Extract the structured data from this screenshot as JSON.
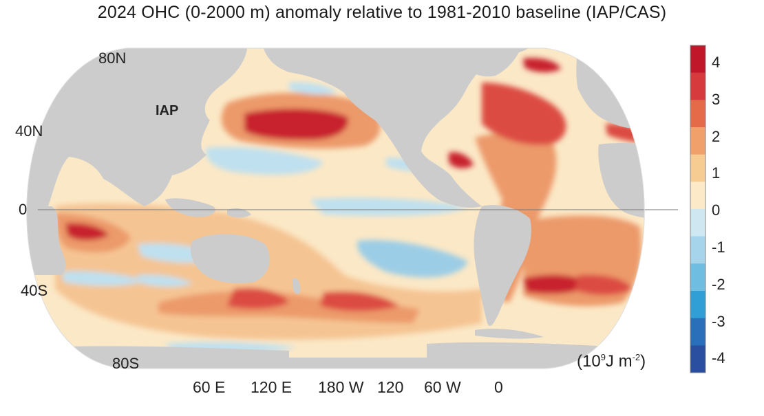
{
  "title": "2024 OHC (0-2000 m) anomaly relative to 1981-2010 baseline (IAP/CAS)",
  "map_label": "IAP",
  "lat_labels": [
    "80N",
    "40N",
    "0",
    "40S",
    "80S"
  ],
  "lon_labels": [
    "60 E",
    "120 E",
    "180 W",
    "120",
    "60 W",
    "0"
  ],
  "unit": {
    "prefix": "(10",
    "exp1": "9",
    "mid": "J m",
    "exp2": "-2",
    "suffix": ")"
  },
  "colorbar": {
    "ticks": [
      "4",
      "3",
      "2",
      "1",
      "0",
      "-1",
      "-2",
      "-3",
      "-4"
    ],
    "colors": [
      "#c0172b",
      "#d63a3c",
      "#e46a4a",
      "#f0a06a",
      "#f7cc93",
      "#fbe9c7",
      "#cfe7f1",
      "#a6d4ea",
      "#6fbde1",
      "#2f9fd6",
      "#2a6fb9",
      "#2a4fa0"
    ]
  },
  "colors": {
    "land": "#cccccc",
    "ocean_base": "#fbe8c6",
    "warm_light": "#f5c493",
    "warm": "#ec9a6b",
    "hot": "#dc4b43",
    "very_hot": "#c8202f",
    "cool": "#bfe0ef",
    "cooler": "#9ccde6"
  }
}
